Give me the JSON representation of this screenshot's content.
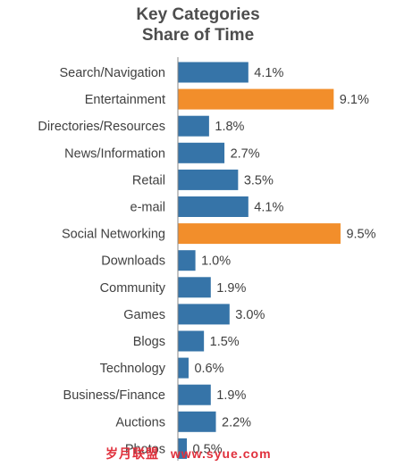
{
  "chart_data": {
    "type": "bar",
    "orientation": "horizontal",
    "title": [
      "Key Categories",
      "Share of Time"
    ],
    "categories": [
      "Search/Navigation",
      "Entertainment",
      "Directories/Resources",
      "News/Information",
      "Retail",
      "e-mail",
      "Social Networking",
      "Downloads",
      "Community",
      "Games",
      "Blogs",
      "Technology",
      "Business/Finance",
      "Auctions",
      "Photos"
    ],
    "values": [
      4.1,
      9.1,
      1.8,
      2.7,
      3.5,
      4.1,
      9.5,
      1.0,
      1.9,
      3.0,
      1.5,
      0.6,
      1.9,
      2.2,
      0.5
    ],
    "data_labels": [
      "4.1%",
      "9.1%",
      "1.8%",
      "2.7%",
      "3.5%",
      "4.1%",
      "9.5%",
      "1.0%",
      "1.9%",
      "3.0%",
      "1.5%",
      "0.6%",
      "1.9%",
      "2.2%",
      "0.5%"
    ],
    "highlighted": [
      "Entertainment",
      "Social Networking"
    ],
    "xlim": [
      0,
      10
    ],
    "grid": false,
    "legend": "none",
    "colors": {
      "default_bar": "#3674a8",
      "highlight_bar": "#f28e2b",
      "text": "#404040",
      "title": "#4d4d4d",
      "axis": "#888888"
    }
  },
  "watermark": [
    "岁月联盟",
    "www.syue.com"
  ]
}
